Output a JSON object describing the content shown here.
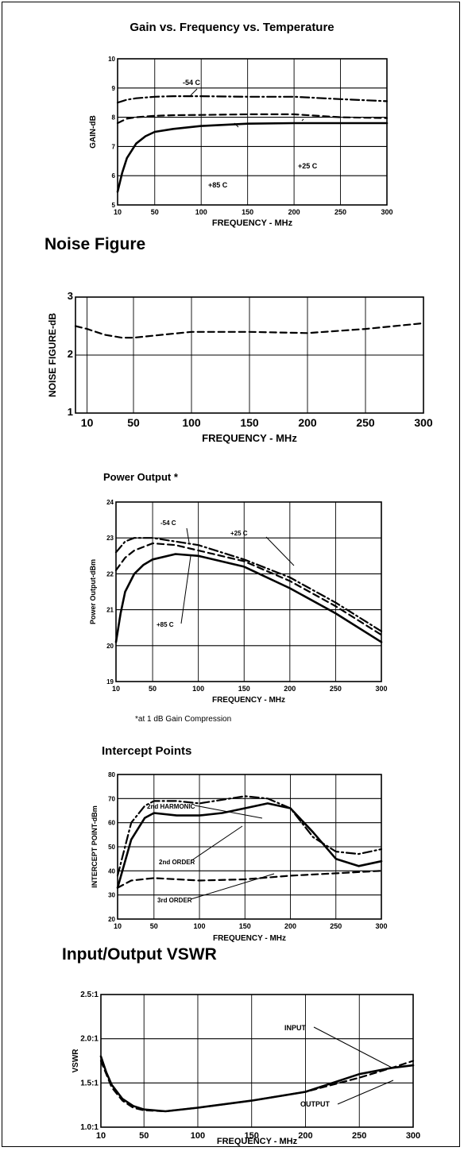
{
  "chart_data": [
    {
      "type": "line",
      "title": "Gain vs. Frequency vs. Temperature",
      "xlabel": "FREQUENCY - MHz",
      "ylabel": "GAIN-dB",
      "xlim": [
        10,
        300
      ],
      "ylim": [
        5,
        10
      ],
      "xticks": [
        10,
        50,
        100,
        150,
        200,
        250,
        300
      ],
      "xtick_labels": [
        "10",
        "50",
        "100",
        "150",
        "200",
        "250",
        "300"
      ],
      "yticks": [
        5,
        6,
        7,
        8,
        9,
        10
      ],
      "ytick_labels": [
        "5",
        "6",
        "7",
        "8",
        "9",
        "10"
      ],
      "grid": true,
      "series": [
        {
          "name": "-54 C",
          "style": "dashdot",
          "x": [
            10,
            20,
            30,
            50,
            70,
            100,
            150,
            200,
            250,
            300
          ],
          "y": [
            8.5,
            8.6,
            8.65,
            8.7,
            8.72,
            8.72,
            8.7,
            8.7,
            8.62,
            8.55
          ]
        },
        {
          "name": "+25 C",
          "style": "dashed",
          "x": [
            10,
            20,
            30,
            50,
            70,
            100,
            150,
            200,
            250,
            300
          ],
          "y": [
            7.8,
            7.95,
            8.0,
            8.05,
            8.07,
            8.08,
            8.1,
            8.1,
            8.0,
            7.97
          ]
        },
        {
          "name": "+85 C",
          "style": "solid",
          "x": [
            10,
            15,
            20,
            30,
            40,
            50,
            70,
            100,
            150,
            200,
            250,
            300
          ],
          "y": [
            5.45,
            6.1,
            6.6,
            7.1,
            7.35,
            7.5,
            7.6,
            7.7,
            7.78,
            7.8,
            7.8,
            7.8
          ]
        }
      ],
      "annotations": [
        "-54 C",
        "+25 C",
        "+85 C"
      ]
    },
    {
      "type": "line",
      "title": "Noise Figure",
      "xlabel": "FREQUENCY - MHz",
      "ylabel": "NOISE FIGURE-dB",
      "xlim": [
        0,
        300
      ],
      "ylim": [
        1,
        3
      ],
      "scale": "log",
      "xticks": [
        10,
        50,
        100,
        150,
        200,
        250,
        300
      ],
      "xtick_labels": [
        "10",
        "50",
        "100",
        "150",
        "200",
        "250",
        "300"
      ],
      "yticks": [
        1,
        2,
        3
      ],
      "ytick_labels": [
        "1",
        "2",
        "3"
      ],
      "grid": true,
      "series": [
        {
          "style": "dashed",
          "x": [
            0,
            10,
            25,
            40,
            50,
            75,
            100,
            150,
            200,
            250,
            300
          ],
          "y": [
            2.5,
            2.45,
            2.35,
            2.3,
            2.3,
            2.35,
            2.4,
            2.4,
            2.38,
            2.45,
            2.55
          ]
        }
      ]
    },
    {
      "type": "line",
      "title": "Power Output *",
      "xlabel": "FREQUENCY - MHz",
      "ylabel": "Power Output-dBm",
      "xlim": [
        10,
        300
      ],
      "ylim": [
        19,
        24
      ],
      "xticks": [
        10,
        50,
        100,
        150,
        200,
        250,
        300
      ],
      "xtick_labels": [
        "10",
        "50",
        "100",
        "150",
        "200",
        "250",
        "300"
      ],
      "yticks": [
        19,
        20,
        21,
        22,
        23,
        24
      ],
      "ytick_labels": [
        "19",
        "20",
        "21",
        "22",
        "23",
        "24"
      ],
      "grid": true,
      "series": [
        {
          "name": "-54 C",
          "style": "dashdot",
          "x": [
            10,
            20,
            30,
            50,
            75,
            100,
            150,
            200,
            250,
            300
          ],
          "y": [
            22.6,
            22.9,
            23.0,
            23.0,
            22.9,
            22.8,
            22.4,
            21.9,
            21.2,
            20.4
          ]
        },
        {
          "name": "+25 C",
          "style": "dashed",
          "x": [
            10,
            20,
            30,
            50,
            75,
            100,
            150,
            200,
            250,
            300
          ],
          "y": [
            22.1,
            22.45,
            22.65,
            22.85,
            22.8,
            22.65,
            22.35,
            21.8,
            21.1,
            20.3
          ]
        },
        {
          "name": "+85 C",
          "style": "solid",
          "x": [
            10,
            15,
            20,
            30,
            40,
            50,
            75,
            100,
            150,
            200,
            250,
            300
          ],
          "y": [
            20.1,
            20.9,
            21.5,
            22.0,
            22.25,
            22.4,
            22.55,
            22.5,
            22.2,
            21.6,
            20.9,
            20.1
          ]
        }
      ],
      "annotations": [
        "-54 C",
        "+25 C",
        "+85 C"
      ],
      "footnote": "*at 1 dB Gain Compression"
    },
    {
      "type": "line",
      "title": "Intercept Points",
      "xlabel": "FREQUENCY - MHz",
      "ylabel": "INTERCEPT POINT-dBm",
      "xlim": [
        10,
        300
      ],
      "ylim": [
        20,
        80
      ],
      "xticks": [
        10,
        50,
        100,
        150,
        200,
        250,
        300
      ],
      "xtick_labels": [
        "10",
        "50",
        "100",
        "150",
        "200",
        "250",
        "300"
      ],
      "yticks": [
        20,
        30,
        40,
        50,
        60,
        70,
        80
      ],
      "ytick_labels": [
        "20",
        "30",
        "40",
        "50",
        "60",
        "70",
        "80"
      ],
      "grid": true,
      "series": [
        {
          "name": "2nd HARMONIC",
          "style": "dashdot",
          "x": [
            10,
            25,
            40,
            50,
            75,
            100,
            150,
            175,
            200,
            225,
            250,
            275,
            300
          ],
          "y": [
            38,
            60,
            67,
            69,
            69,
            68,
            71,
            70,
            66,
            54,
            48,
            47,
            49
          ]
        },
        {
          "name": "2nd ORDER",
          "style": "solid",
          "x": [
            10,
            25,
            40,
            50,
            75,
            100,
            125,
            150,
            175,
            200,
            225,
            250,
            275,
            300
          ],
          "y": [
            33,
            53,
            62,
            64,
            63,
            63,
            64,
            66,
            68,
            66,
            56,
            45,
            42,
            44
          ]
        },
        {
          "name": "3rd ORDER",
          "style": "dashed",
          "x": [
            10,
            25,
            50,
            100,
            150,
            200,
            250,
            300
          ],
          "y": [
            33,
            36,
            37,
            36,
            36.5,
            38,
            39,
            40
          ]
        }
      ],
      "annotations": [
        "2nd HARMONIC",
        "2nd ORDER",
        "3rd ORDER"
      ]
    },
    {
      "type": "line",
      "title": "Input/Output VSWR",
      "xlabel": "FREQUENCY - MHz",
      "ylabel": "VSWR",
      "xlim": [
        10,
        300
      ],
      "ylim": [
        1.0,
        2.5
      ],
      "xticks": [
        10,
        50,
        100,
        150,
        200,
        250,
        300
      ],
      "xtick_labels": [
        "10",
        "50",
        "100",
        "150",
        "200",
        "250",
        "300"
      ],
      "yticks": [
        1.0,
        1.5,
        2.0,
        2.5
      ],
      "ytick_labels": [
        "1.0:1",
        "1.5:1",
        "2.0:1",
        "2.5:1"
      ],
      "grid": true,
      "series": [
        {
          "name": "INPUT",
          "style": "dashed",
          "x": [
            10,
            15,
            20,
            30,
            40,
            50,
            70,
            100,
            150,
            200,
            250,
            280,
            300
          ],
          "y": [
            1.75,
            1.6,
            1.45,
            1.3,
            1.22,
            1.19,
            1.18,
            1.22,
            1.3,
            1.4,
            1.56,
            1.67,
            1.75
          ]
        },
        {
          "name": "OUTPUT",
          "style": "solid",
          "x": [
            10,
            15,
            20,
            30,
            40,
            50,
            70,
            100,
            150,
            200,
            250,
            280,
            300
          ],
          "y": [
            1.8,
            1.62,
            1.48,
            1.32,
            1.24,
            1.2,
            1.18,
            1.22,
            1.3,
            1.4,
            1.6,
            1.67,
            1.7
          ]
        }
      ],
      "annotations": [
        "INPUT",
        "OUTPUT"
      ]
    }
  ]
}
